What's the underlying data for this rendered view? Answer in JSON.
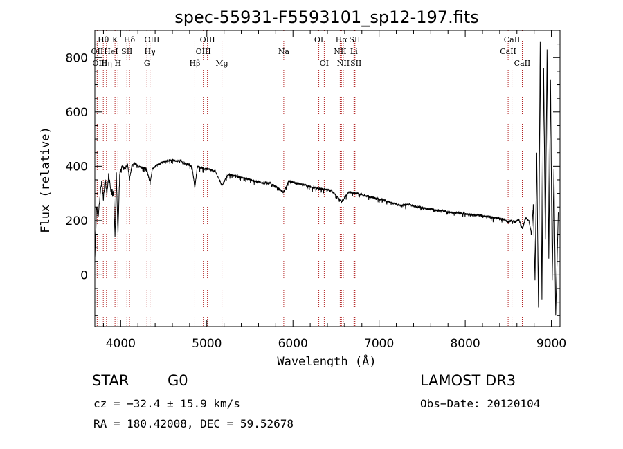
{
  "chart_data": {
    "type": "line",
    "title": "spec-55931-F5593101_sp12-197.fits",
    "xlabel": "Wavelength (Å)",
    "ylabel": "Flux (relative)",
    "xlim": [
      3700,
      9100
    ],
    "ylim": [
      -190,
      900
    ],
    "x_ticks": [
      4000,
      5000,
      6000,
      7000,
      8000,
      9000
    ],
    "x_tick_labels": [
      "4000",
      "5000",
      "6000",
      "7000",
      "8000",
      "9000"
    ],
    "y_ticks": [
      0,
      200,
      400,
      600,
      800
    ],
    "y_tick_labels": [
      "0",
      "200",
      "400",
      "600",
      "800"
    ],
    "line_color": "#000000",
    "marker_color": "#b22222",
    "spectrum": {
      "name": "flux",
      "x": [
        3700,
        3720,
        3740,
        3760,
        3780,
        3800,
        3820,
        3840,
        3860,
        3880,
        3900,
        3920,
        3934,
        3950,
        3968,
        3990,
        4020,
        4050,
        4080,
        4102,
        4130,
        4170,
        4200,
        4250,
        4300,
        4340,
        4370,
        4400,
        4450,
        4500,
        4550,
        4600,
        4650,
        4700,
        4750,
        4800,
        4830,
        4861,
        4890,
        4950,
        5000,
        5100,
        5175,
        5250,
        5350,
        5450,
        5550,
        5650,
        5750,
        5893,
        5950,
        6050,
        6150,
        6250,
        6350,
        6450,
        6563,
        6650,
        6750,
        6850,
        6950,
        7050,
        7150,
        7250,
        7350,
        7450,
        7550,
        7650,
        7750,
        7850,
        7950,
        8050,
        8150,
        8250,
        8350,
        8450,
        8498,
        8542,
        8580,
        8620,
        8662,
        8700,
        8740,
        8770,
        8790,
        8810,
        8830,
        8850,
        8870,
        8890,
        8910,
        8930,
        8950,
        8970,
        8990,
        9010,
        9030,
        9050,
        9080
      ],
      "values": [
        60,
        250,
        210,
        300,
        340,
        280,
        350,
        300,
        370,
        320,
        310,
        290,
        130,
        370,
        150,
        380,
        400,
        390,
        410,
        350,
        405,
        410,
        400,
        395,
        390,
        340,
        390,
        400,
        410,
        418,
        420,
        425,
        418,
        422,
        410,
        405,
        395,
        320,
        400,
        392,
        390,
        380,
        330,
        370,
        363,
        355,
        345,
        340,
        335,
        305,
        345,
        335,
        330,
        320,
        315,
        310,
        270,
        305,
        300,
        290,
        283,
        275,
        265,
        255,
        260,
        250,
        245,
        240,
        235,
        230,
        228,
        222,
        220,
        215,
        210,
        205,
        195,
        200,
        195,
        205,
        170,
        210,
        200,
        150,
        260,
        -20,
        450,
        -120,
        860,
        -90,
        760,
        130,
        830,
        60,
        720,
        -20,
        390,
        -150,
        230
      ]
    },
    "spectral_lines": [
      {
        "name": "Hθ",
        "wavelength": 3798,
        "row": 1
      },
      {
        "name": "OII",
        "wavelength": 3727,
        "row": 2
      },
      {
        "name": "OIII",
        "wavelength": 3760,
        "row": 3
      },
      {
        "name": "Hη",
        "wavelength": 3835,
        "row": 3
      },
      {
        "name": "K",
        "wavelength": 3934,
        "row": 1
      },
      {
        "name": "HeI",
        "wavelength": 3889,
        "row": 2
      },
      {
        "name": "H",
        "wavelength": 3968,
        "row": 3
      },
      {
        "name": "SII",
        "wavelength": 4072,
        "row": 2
      },
      {
        "name": "Hδ",
        "wavelength": 4102,
        "row": 1
      },
      {
        "name": "OIII",
        "wavelength": 4363,
        "row": 1
      },
      {
        "name": "Hγ",
        "wavelength": 4340,
        "row": 2
      },
      {
        "name": "G",
        "wavelength": 4305,
        "row": 3
      },
      {
        "name": "Hβ",
        "wavelength": 4861,
        "row": 3
      },
      {
        "name": "OIII",
        "wavelength": 5007,
        "row": 1
      },
      {
        "name": "OIII",
        "wavelength": 4959,
        "row": 2
      },
      {
        "name": "Mg",
        "wavelength": 5175,
        "row": 3
      },
      {
        "name": "Na",
        "wavelength": 5893,
        "row": 2
      },
      {
        "name": "OI",
        "wavelength": 6300,
        "row": 1
      },
      {
        "name": "OI",
        "wavelength": 6363,
        "row": 3
      },
      {
        "name": "Hα",
        "wavelength": 6563,
        "row": 1
      },
      {
        "name": "NII",
        "wavelength": 6548,
        "row": 2
      },
      {
        "name": "NII",
        "wavelength": 6584,
        "row": 3
      },
      {
        "name": "SII",
        "wavelength": 6717,
        "row": 1
      },
      {
        "name": "Li",
        "wavelength": 6708,
        "row": 2
      },
      {
        "name": "SII",
        "wavelength": 6731,
        "row": 3
      },
      {
        "name": "CaII",
        "wavelength": 8542,
        "row": 1
      },
      {
        "name": "CaII",
        "wavelength": 8498,
        "row": 2
      },
      {
        "name": "CaII",
        "wavelength": 8662,
        "row": 3
      }
    ]
  },
  "info": {
    "class": "STAR",
    "subclass": "G0",
    "survey": "LAMOST DR3",
    "redshift": "cz = −32.4 ± 15.9 km/s",
    "obs_date": "Obs−Date: 20120104",
    "coords": "RA = 180.42008, DEC =  59.52678"
  }
}
